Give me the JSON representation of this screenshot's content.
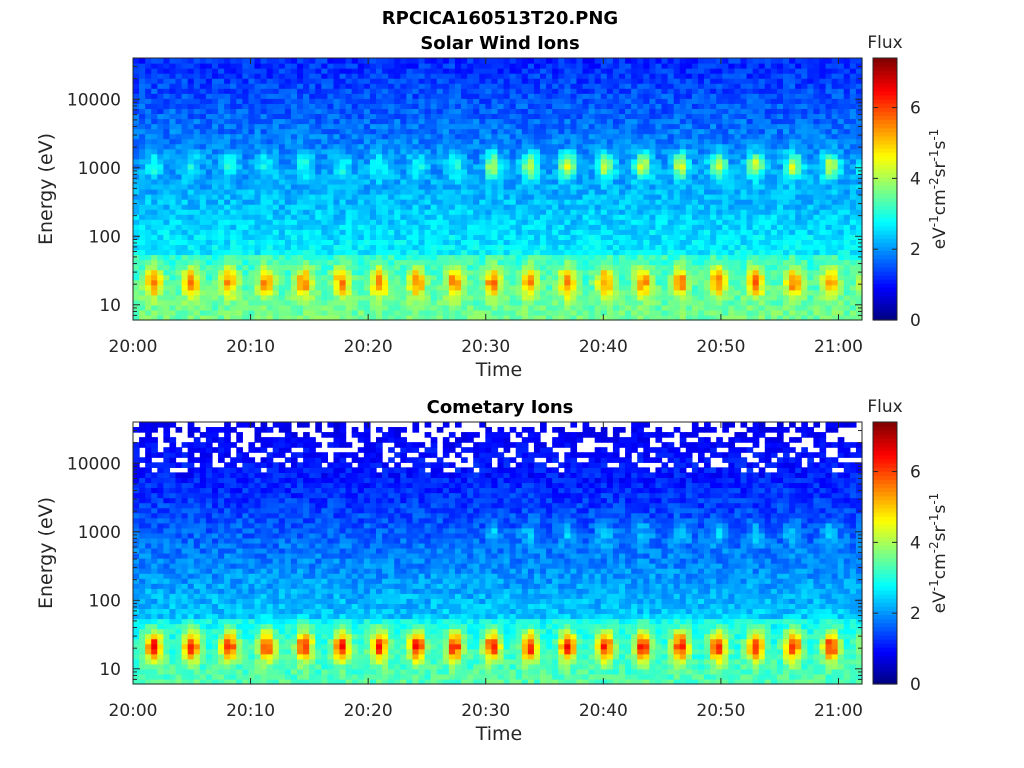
{
  "figure": {
    "title": "RPCICA160513T20.PNG"
  },
  "chart_data": [
    {
      "type": "heatmap",
      "title": "Solar Wind Ions",
      "xlabel": "Time",
      "ylabel": "Energy (eV)",
      "x_ticks": [
        "20:00",
        "20:10",
        "20:20",
        "20:30",
        "20:40",
        "20:50",
        "21:00"
      ],
      "x_range": [
        "20:00",
        "21:02"
      ],
      "y_ticks": [
        10,
        100,
        1000,
        10000
      ],
      "y_scale": "log",
      "y_range": [
        6,
        40000
      ],
      "colorbar": {
        "label": "Flux",
        "units": "eV-1cm-2sr-1s-1",
        "ticks": [
          0,
          2,
          4,
          6
        ],
        "range": [
          0,
          7.4
        ],
        "colormap": "jet"
      },
      "sweep_period_min": 3.2,
      "features": [
        {
          "name": "low-energy band",
          "energy_eV": [
            12,
            40
          ],
          "peak_flux": 5.5
        },
        {
          "name": "mid-energy band",
          "energy_eV": [
            600,
            2000
          ],
          "peak_flux": 4.5,
          "from": "20:30"
        }
      ],
      "background_flux": {
        "low_energy": 3.2,
        "high_energy": 1.2
      }
    },
    {
      "type": "heatmap",
      "title": "Cometary Ions",
      "xlabel": "Time",
      "ylabel": "Energy (eV)",
      "x_ticks": [
        "20:00",
        "20:10",
        "20:20",
        "20:30",
        "20:40",
        "20:50",
        "21:00"
      ],
      "x_range": [
        "20:00",
        "21:02"
      ],
      "y_ticks": [
        10,
        100,
        1000,
        10000
      ],
      "y_scale": "log",
      "y_range": [
        6,
        40000
      ],
      "colorbar": {
        "label": "Flux",
        "units": "eV-1cm-2sr-1s-1",
        "ticks": [
          0,
          2,
          4,
          6
        ],
        "range": [
          0,
          7.4
        ],
        "colormap": "jet"
      },
      "sweep_period_min": 3.2,
      "features": [
        {
          "name": "low-energy band",
          "energy_eV": [
            12,
            40
          ],
          "peak_flux": 6.3
        },
        {
          "name": "mid-energy band",
          "energy_eV": [
            600,
            1500
          ],
          "peak_flux": 3.0,
          "from": "20:30"
        }
      ],
      "background_flux": {
        "low_energy": 3.0,
        "high_energy": 0.6
      },
      "missing_data": "white gaps above 8000 eV"
    }
  ]
}
